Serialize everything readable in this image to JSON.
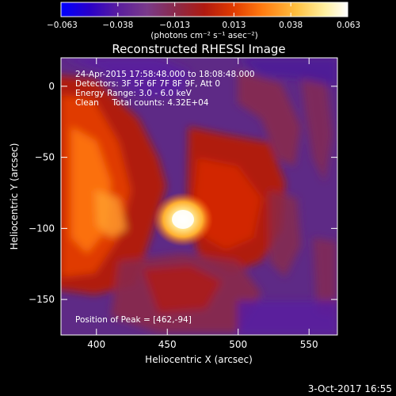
{
  "chart_data": {
    "type": "heatmap",
    "title": "Reconstructed RHESSI Image",
    "xlabel": "Heliocentric X (arcsec)",
    "ylabel": "Heliocentric Y (arcsec)",
    "xlim": [
      375,
      570
    ],
    "ylim": [
      -175,
      20
    ],
    "xticks": [
      400,
      450,
      500,
      550
    ],
    "yticks": [
      0,
      -50,
      -100,
      -150
    ],
    "colorbar": {
      "range": [
        -0.063,
        0.063
      ],
      "tick_values": [
        -0.063,
        -0.038,
        -0.013,
        0.013,
        0.038,
        0.063
      ],
      "tick_labels": [
        "−0.063",
        "−0.038",
        "−0.013",
        "0.013",
        "0.038",
        "0.063"
      ],
      "units_text": "(photons cm⁻² s⁻¹ asec⁻²)",
      "colormap": [
        "#0000ff",
        "#2a00c8",
        "#5a1e9e",
        "#7a3a8a",
        "#8a2a4a",
        "#b01a10",
        "#e03a00",
        "#ff7a10",
        "#ffc040",
        "#fff0a0",
        "#ffffff"
      ]
    },
    "annotations": [
      "24-Apr-2015 17:58:48.000 to 18:08:48.000",
      "Detectors: 3F 5F 6F 7F 8F 9F, Att 0",
      "Energy Range: 3.0 - 6.0 keV",
      "Clean     Total counts: 4.32E+04"
    ],
    "peak_label": "Position of Peak = [462,-94]",
    "peak": {
      "x": 462,
      "y": -94,
      "value": 0.063
    },
    "grid": false
  },
  "footer": {
    "date": "3-Oct-2017 16:55"
  }
}
